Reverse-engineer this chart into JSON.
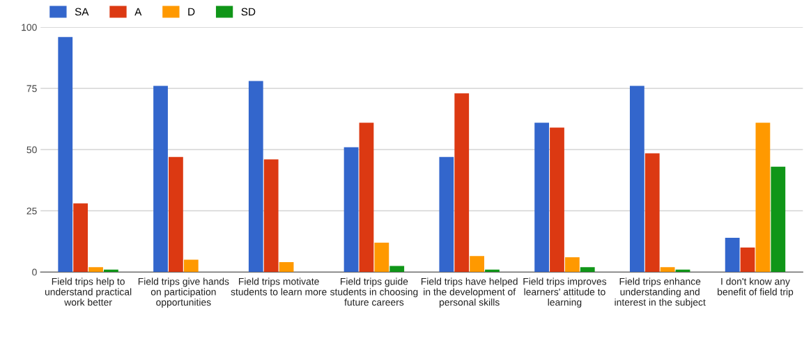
{
  "chart_data": {
    "type": "bar",
    "categories": [
      "Field trips help to\nunderstand practical\nwork better",
      "Field trips give hands\non participation\nopportunities",
      "Field trips motivate\nstudents to learn more",
      "Field trips guide\nstudents in choosing\nfuture careers",
      "Field trips have helped\nin the development of\npersonal skills",
      "Field trips improves\nlearners' attitude to\nlearning",
      "Field trips enhance\nunderstanding and\ninterest in the subject",
      "I don't know any\nbenefit of field trip"
    ],
    "series": [
      {
        "name": "SA",
        "color": "#3366cc",
        "values": [
          96,
          76,
          78,
          51,
          47,
          61,
          76,
          14
        ]
      },
      {
        "name": "A",
        "color": "#dc3912",
        "values": [
          28,
          47,
          46,
          61,
          73,
          59,
          48.5,
          10
        ]
      },
      {
        "name": "D",
        "color": "#ff9900",
        "values": [
          2,
          5,
          4,
          12,
          6.5,
          6,
          2,
          61
        ]
      },
      {
        "name": "SD",
        "color": "#109618",
        "values": [
          1,
          0,
          0,
          2.5,
          1,
          2,
          1,
          43
        ]
      }
    ],
    "ylim": [
      0,
      100
    ],
    "yticks": [
      0,
      25,
      50,
      75,
      100
    ],
    "grid": "y",
    "legend": "top left"
  }
}
